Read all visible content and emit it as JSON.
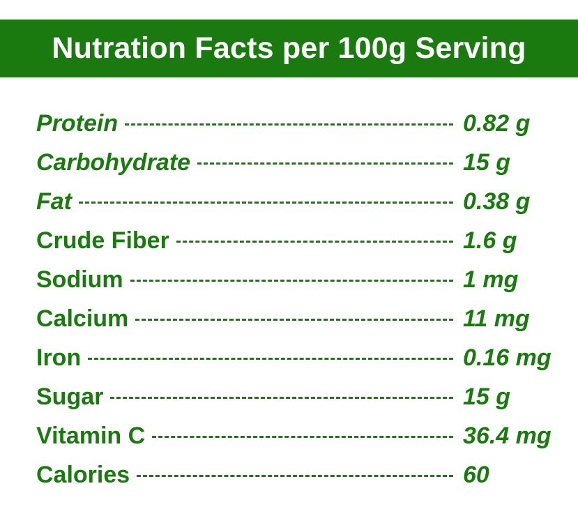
{
  "title": "Nutration Facts per 100g Serving",
  "colors": {
    "brand_green": "#1a7a0f",
    "header_text": "#ffffff",
    "background": "#ffffff"
  },
  "nutrients": [
    {
      "label": "Protein",
      "value": "0.82 g",
      "italic": true
    },
    {
      "label": "Carbohydrate",
      "value": "15 g",
      "italic": true
    },
    {
      "label": "Fat",
      "value": "0.38 g",
      "italic": true
    },
    {
      "label": "Crude Fiber",
      "value": "1.6 g",
      "italic": false
    },
    {
      "label": "Sodium",
      "value": "1 mg",
      "italic": false
    },
    {
      "label": "Calcium",
      "value": "11 mg",
      "italic": false
    },
    {
      "label": "Iron",
      "value": "0.16 mg",
      "italic": false
    },
    {
      "label": "Sugar",
      "value": "15 g",
      "italic": false
    },
    {
      "label": "Vitamin C",
      "value": "36.4 mg",
      "italic": false
    },
    {
      "label": "Calories",
      "value": "60",
      "italic": false
    }
  ]
}
